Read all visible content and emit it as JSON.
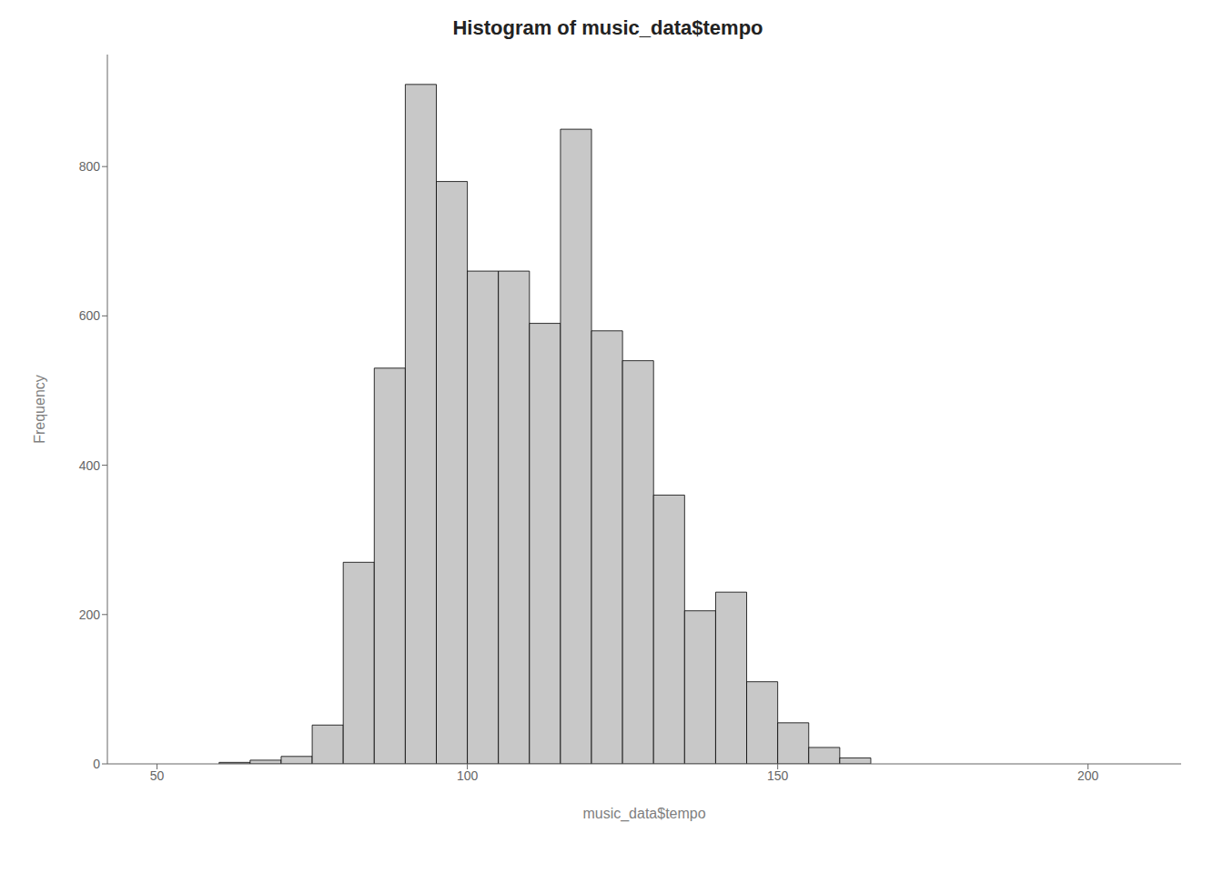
{
  "chart_data": {
    "type": "histogram",
    "title": "Histogram of music_data$tempo",
    "x_label": "music_data$tempo",
    "y_label": "Frequency",
    "bins": [
      60,
      65,
      70,
      75,
      80,
      85,
      90,
      95,
      100,
      105,
      110,
      115,
      120,
      125,
      130,
      135,
      140,
      145,
      150,
      155,
      160,
      165,
      170,
      175,
      180,
      185,
      190,
      195,
      200,
      205,
      210
    ],
    "values": [
      2,
      5,
      10,
      52,
      270,
      530,
      910,
      780,
      660,
      660,
      590,
      850,
      580,
      540,
      360,
      205,
      230,
      110,
      55,
      22,
      8,
      0,
      0,
      0,
      0,
      0,
      0,
      0,
      0,
      0
    ],
    "color": "#c8c8c8",
    "xlim": [
      42,
      215
    ],
    "ylim": [
      0,
      950
    ],
    "xticks": [
      50,
      100,
      150,
      200
    ],
    "yticks": [
      0,
      200,
      400,
      600,
      800
    ]
  }
}
